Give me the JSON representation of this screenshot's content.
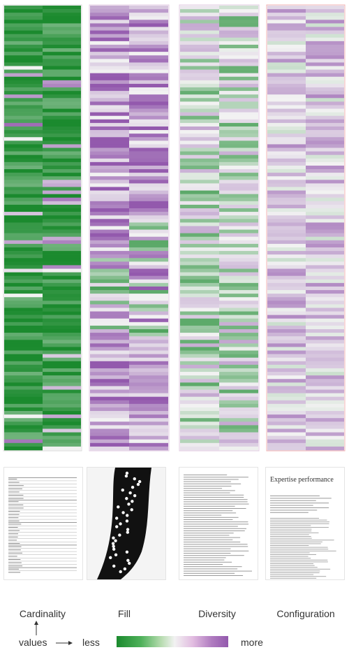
{
  "columns": [
    {
      "label": "Cardinality"
    },
    {
      "label": "Fill"
    },
    {
      "label": "Diversity"
    },
    {
      "label": "Configuration"
    }
  ],
  "legend": {
    "values_label": "values",
    "less_label": "less",
    "more_label": "more",
    "colors": {
      "less": "#1b8a2e",
      "mid": "#f2f2f2",
      "more": "#9359ad"
    }
  },
  "thumbnails": {
    "configuration_title": "Expertise performance"
  },
  "chart_data": {
    "type": "heatmap",
    "scale": "diverging green (less) to purple (more)",
    "panels": [
      "Cardinality",
      "Fill",
      "Diversity",
      "Configuration"
    ],
    "sub_columns_per_panel": 2,
    "row_count": 125
  }
}
